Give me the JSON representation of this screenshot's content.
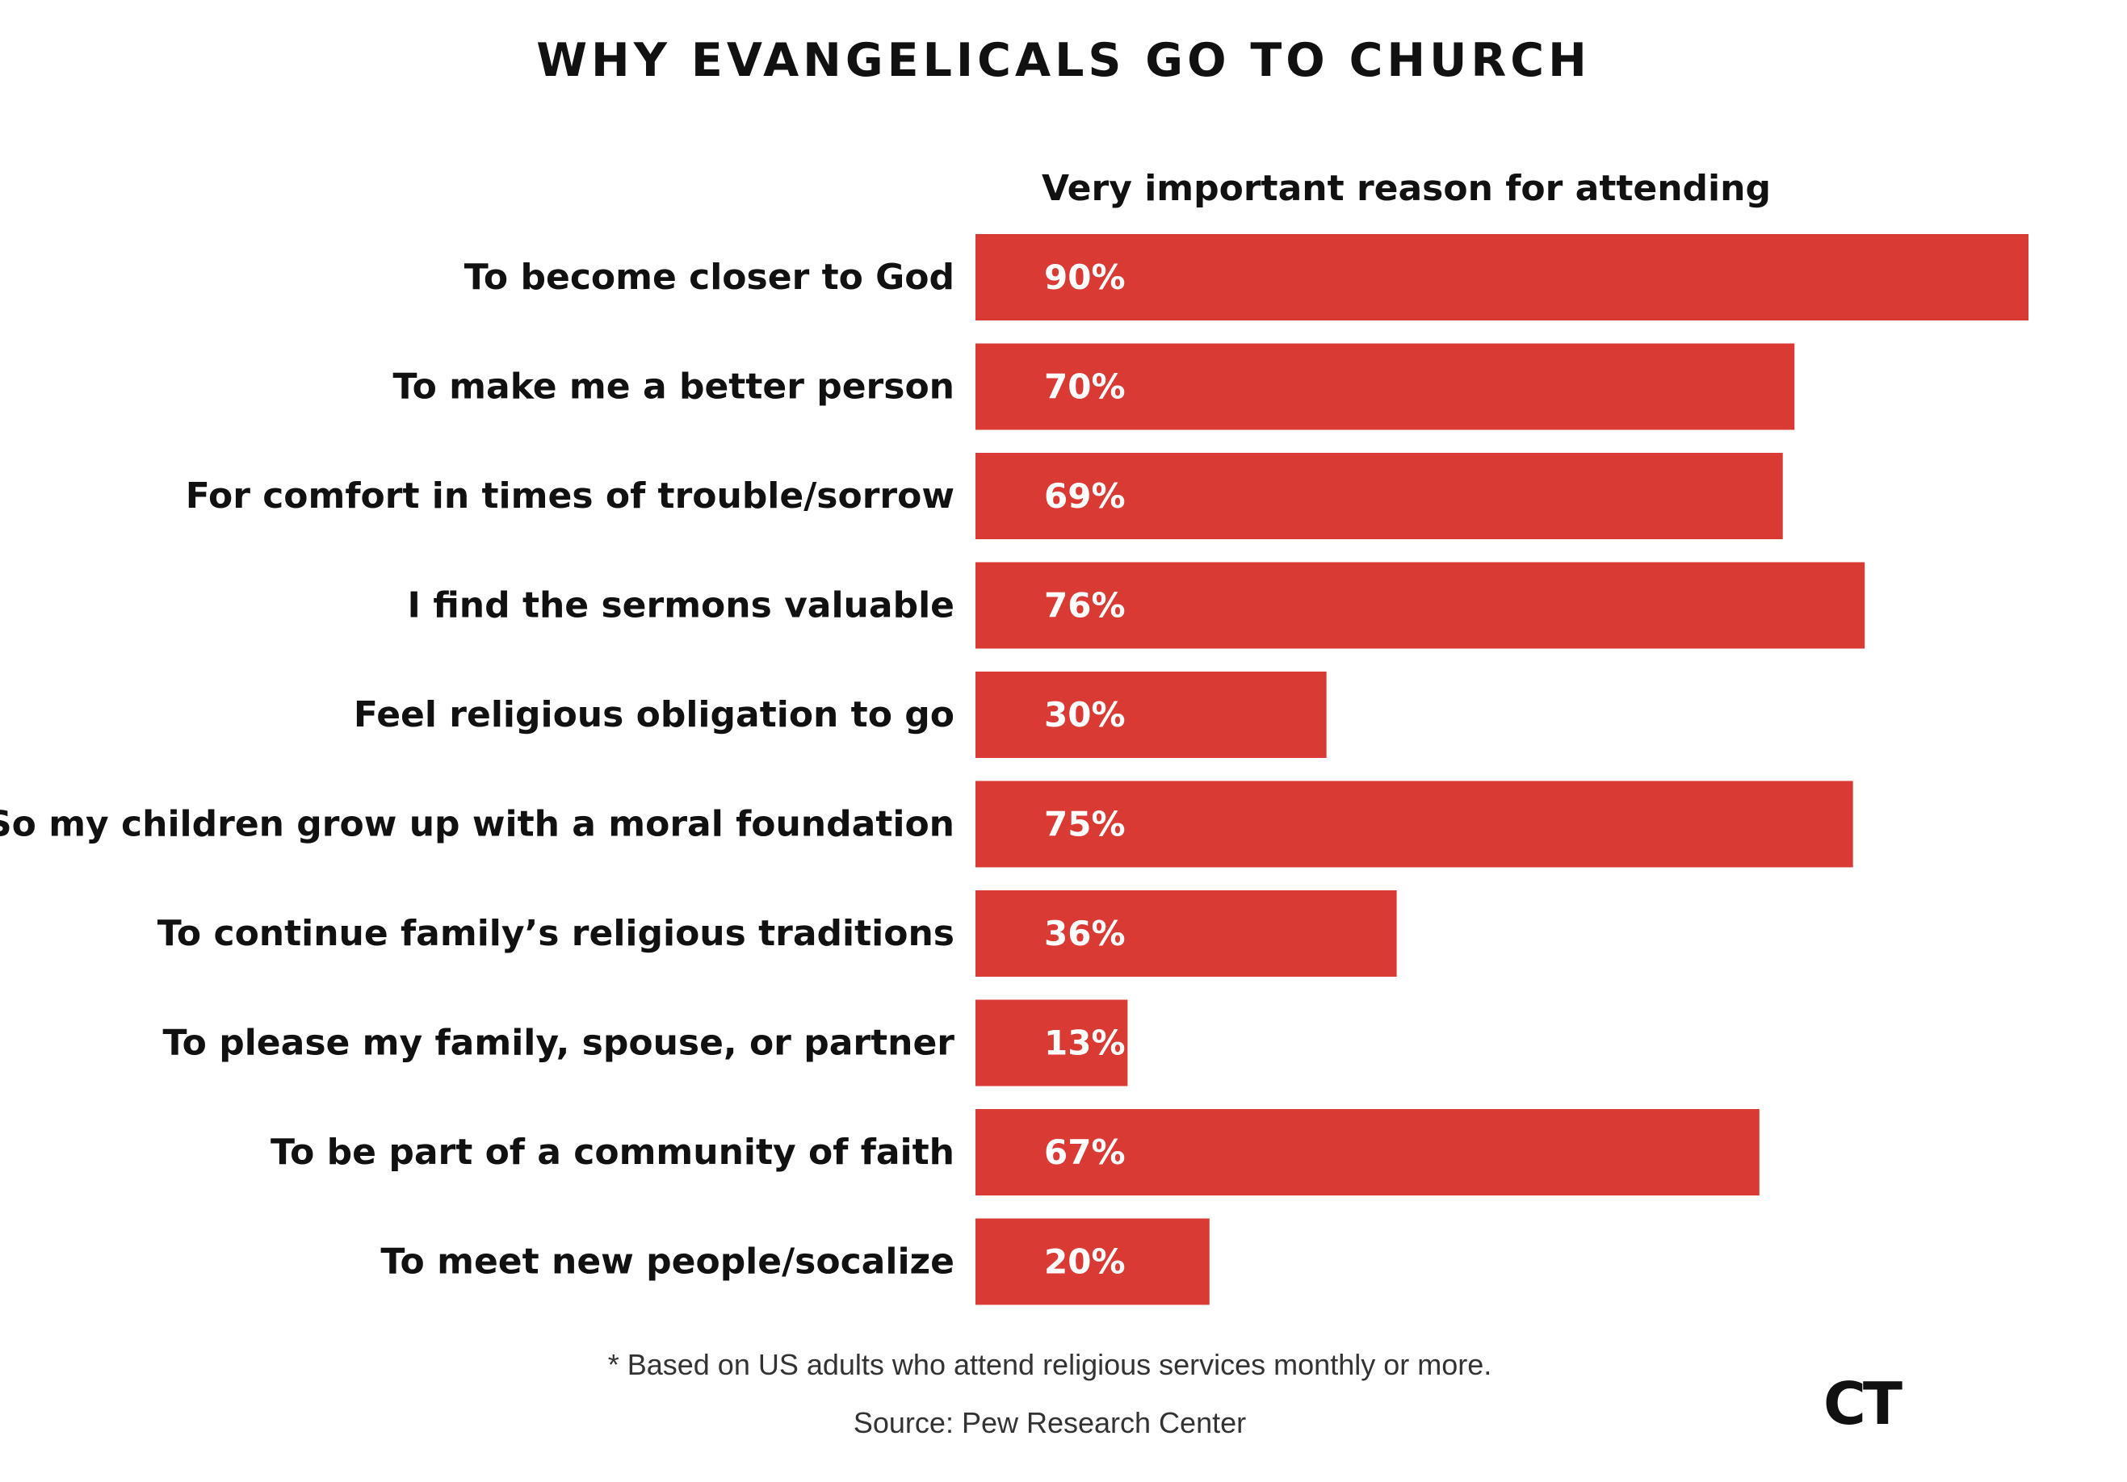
{
  "chart_data": {
    "type": "bar",
    "orientation": "horizontal",
    "title": "WHY EVANGELICALS GO TO CHURCH",
    "subtitle": "Very important reason for attending",
    "categories": [
      "To become closer to God",
      "To make me a better person",
      "For comfort in times of trouble/sorrow",
      "I find the sermons valuable",
      "Feel religious obligation to go",
      "So my children grow up with a moral foundation",
      "To continue family’s religious traditions",
      "To please my family, spouse, or partner",
      "To be part of a community of faith",
      "To meet new people/socalize"
    ],
    "values": [
      90,
      70,
      69,
      76,
      30,
      75,
      36,
      13,
      67,
      20
    ],
    "value_labels": [
      "90%",
      "70%",
      "69%",
      "76%",
      "30%",
      "75%",
      "36%",
      "13%",
      "67%",
      "20%"
    ],
    "unit": "%",
    "xlim": [
      0,
      90
    ],
    "grid": false,
    "legend": "none",
    "bar_color": "#d93a34",
    "label_color": "#ffffff"
  },
  "footnote": "* Based on US adults who attend religious services monthly or more.",
  "source": "Source: Pew Research Center",
  "logo_text": "CT"
}
